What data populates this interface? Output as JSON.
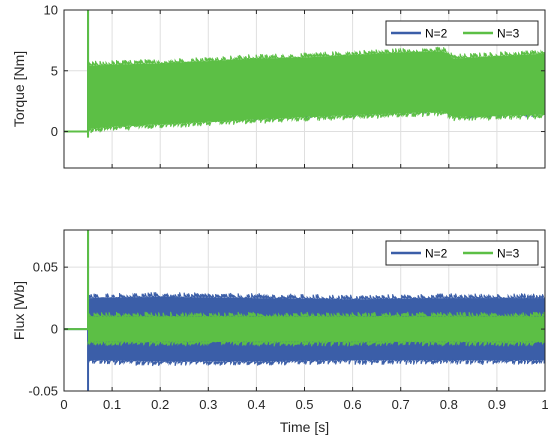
{
  "colors": {
    "n2": "#3b5ea8",
    "n3": "#5cbf45",
    "grid": "#dfdfdf",
    "axis": "#262626"
  },
  "chart_data": [
    {
      "type": "line",
      "title": "",
      "xlabel": "",
      "ylabel": "Torque [Nm]",
      "xlim": [
        0,
        1
      ],
      "ylim": [
        -3,
        10
      ],
      "xticks": [
        0,
        0.1,
        0.2,
        0.3,
        0.4,
        0.5,
        0.6,
        0.7,
        0.8,
        0.9,
        1
      ],
      "xtick_labels": [],
      "yticks": [
        0,
        5,
        10
      ],
      "ytick_labels": [
        "0",
        "5",
        "10"
      ],
      "grid": true,
      "legend": "top-right",
      "band_start": 0.05,
      "series": [
        {
          "name": "N=2",
          "color": "#3b5ea8",
          "pre": 0,
          "spike": [
            -0.3,
            10
          ],
          "x": [
            0.05,
            0.1,
            0.2,
            0.3,
            0.4,
            0.5,
            0.6,
            0.7,
            0.79,
            0.81,
            0.9,
            1.0
          ],
          "y_low": [
            0.8,
            0.9,
            1.0,
            1.15,
            1.3,
            1.45,
            1.6,
            1.75,
            1.85,
            1.4,
            1.5,
            1.6
          ],
          "y_high": [
            4.8,
            4.9,
            5.0,
            5.2,
            5.4,
            5.5,
            5.7,
            5.9,
            6.0,
            5.5,
            5.6,
            5.8
          ]
        },
        {
          "name": "N=3",
          "color": "#5cbf45",
          "pre": 0,
          "spike": [
            -0.5,
            10
          ],
          "x": [
            0.05,
            0.1,
            0.2,
            0.3,
            0.4,
            0.5,
            0.6,
            0.7,
            0.79,
            0.81,
            0.9,
            1.0
          ],
          "y_low": [
            0.2,
            0.4,
            0.6,
            0.8,
            1.0,
            1.2,
            1.35,
            1.5,
            1.65,
            1.2,
            1.3,
            1.4
          ],
          "y_high": [
            5.4,
            5.5,
            5.6,
            5.8,
            6.0,
            6.1,
            6.3,
            6.5,
            6.6,
            6.0,
            6.2,
            6.4
          ]
        }
      ]
    },
    {
      "type": "line",
      "title": "",
      "xlabel": "Time [s]",
      "ylabel": "Flux [Wb]",
      "xlim": [
        0,
        1
      ],
      "ylim": [
        -0.05,
        0.08
      ],
      "xticks": [
        0,
        0.1,
        0.2,
        0.3,
        0.4,
        0.5,
        0.6,
        0.7,
        0.8,
        0.9,
        1
      ],
      "xtick_labels": [
        "0",
        "0.1",
        "0.2",
        "0.3",
        "0.4",
        "0.5",
        "0.6",
        "0.7",
        "0.8",
        "0.9",
        "1"
      ],
      "yticks": [
        -0.05,
        0,
        0.05
      ],
      "ytick_labels": [
        "-0.05",
        "0",
        "0.05"
      ],
      "grid": true,
      "legend": "top-right",
      "band_start": 0.05,
      "series": [
        {
          "name": "N=2",
          "color": "#3b5ea8",
          "pre": 0,
          "spike": [
            -0.05,
            0.08
          ],
          "x": [
            0.05,
            0.2,
            0.4,
            0.6,
            0.8,
            1.0
          ],
          "y_low": [
            -0.025,
            -0.026,
            -0.026,
            -0.025,
            -0.025,
            -0.025
          ],
          "y_high": [
            0.025,
            0.026,
            0.025,
            0.024,
            0.025,
            0.025
          ]
        },
        {
          "name": "N=3",
          "color": "#5cbf45",
          "pre": 0,
          "spike": [
            0,
            0.08
          ],
          "x": [
            0.05,
            0.2,
            0.4,
            0.6,
            0.8,
            1.0
          ],
          "y_low": [
            -0.01,
            -0.01,
            -0.01,
            -0.01,
            -0.01,
            -0.01
          ],
          "y_high": [
            0.01,
            0.01,
            0.01,
            0.01,
            0.01,
            0.01
          ]
        }
      ]
    }
  ]
}
